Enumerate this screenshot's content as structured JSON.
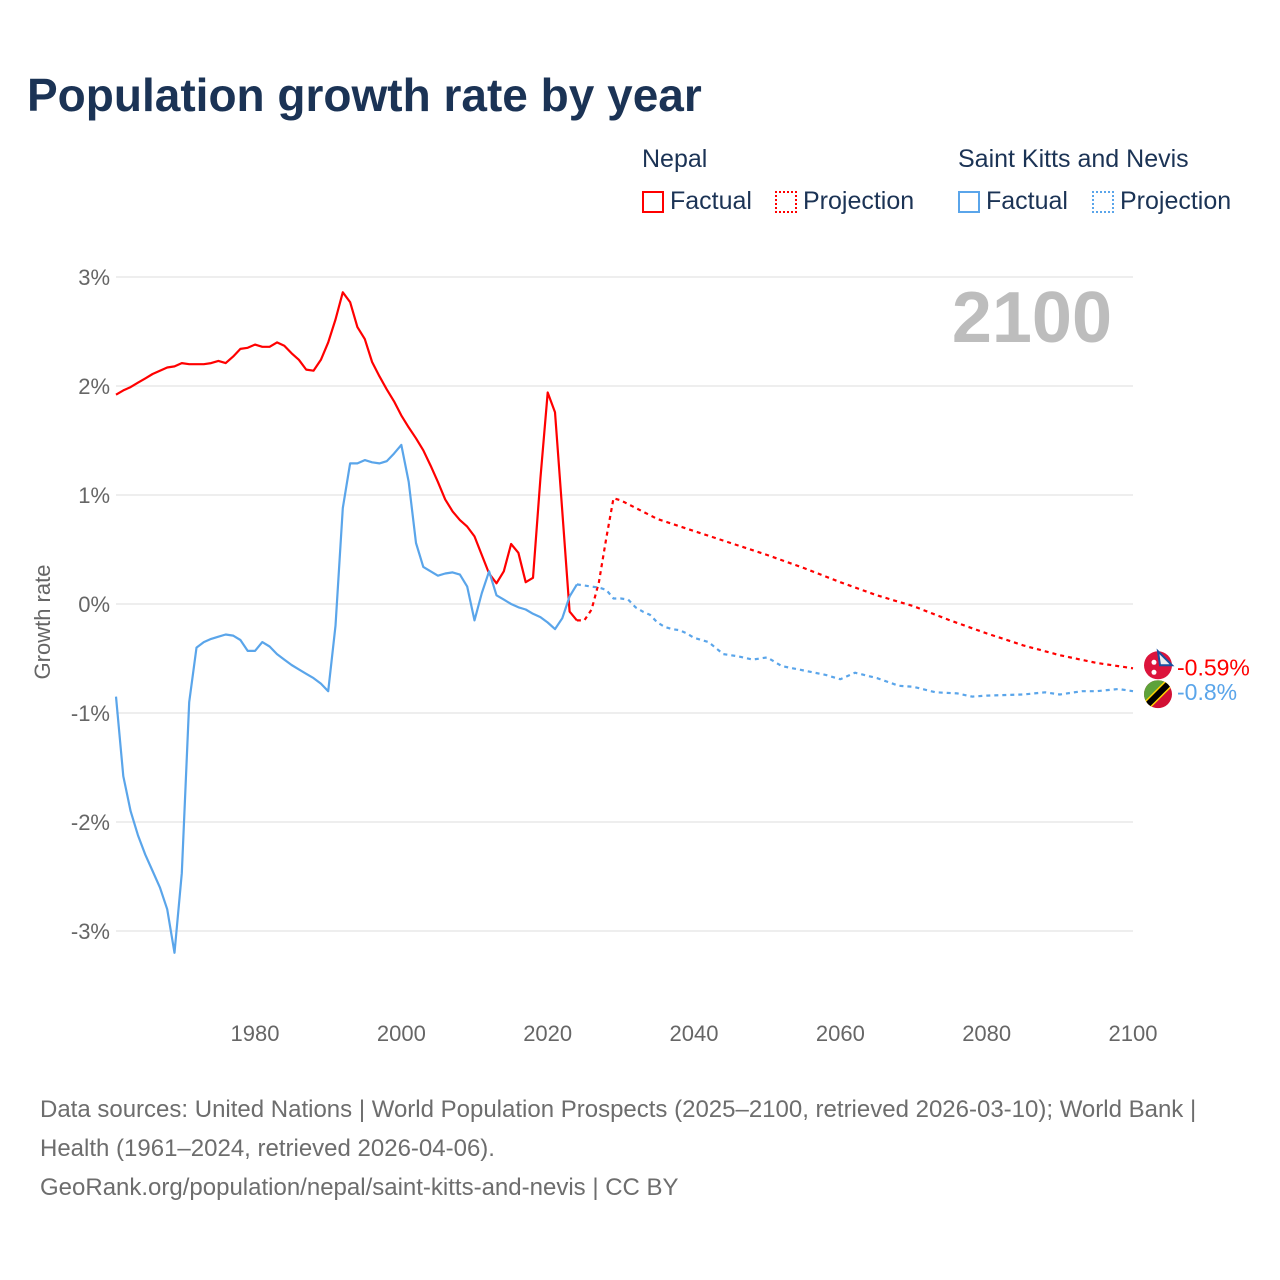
{
  "title": "Population growth rate by year",
  "legend": {
    "groups": [
      {
        "name": "Nepal",
        "items": [
          "Factual",
          "Projection"
        ],
        "color": "#ff0000"
      },
      {
        "name": "Saint Kitts and Nevis",
        "items": [
          "Factual",
          "Projection"
        ],
        "color": "#5aa5ea"
      }
    ]
  },
  "year_label": "2100",
  "footer": {
    "sources": "Data sources: United Nations | World Population Prospects (2025–2100, retrieved 2026-03-10); World Bank | Health (1961–2024, retrieved 2026-04-06).",
    "link": "GeoRank.org/population/nepal/saint-kitts-and-nevis | CC BY"
  },
  "chart_data": {
    "type": "line",
    "title": "Population growth rate by year",
    "xlabel": "",
    "ylabel": "Growth rate",
    "xlim": [
      1961,
      2100
    ],
    "ylim": [
      -3.5,
      3.3
    ],
    "xticks": [
      1980,
      2000,
      2020,
      2040,
      2060,
      2080,
      2100
    ],
    "xtick_labels": [
      "1980",
      "2000",
      "2020",
      "2040",
      "2060",
      "2080",
      "2100"
    ],
    "yticks": [
      3,
      2,
      1,
      0,
      -1,
      -2,
      -3
    ],
    "ytick_labels": [
      "3%",
      "2%",
      "1%",
      "0%",
      "-1%",
      "-2%",
      "-3%"
    ],
    "grid": true,
    "end_labels": [
      "-0.59%",
      "-0.8%"
    ],
    "series": [
      {
        "name": "Nepal Factual",
        "color": "#ff0000",
        "dashed": false,
        "x": [
          1961,
          1962,
          1963,
          1964,
          1965,
          1966,
          1967,
          1968,
          1969,
          1970,
          1971,
          1972,
          1973,
          1974,
          1975,
          1976,
          1977,
          1978,
          1979,
          1980,
          1981,
          1982,
          1983,
          1984,
          1985,
          1986,
          1987,
          1988,
          1989,
          1990,
          1991,
          1992,
          1993,
          1994,
          1995,
          1996,
          1997,
          1998,
          1999,
          2000,
          2001,
          2002,
          2003,
          2004,
          2005,
          2006,
          2007,
          2008,
          2009,
          2010,
          2011,
          2012,
          2013,
          2014,
          2015,
          2016,
          2017,
          2018,
          2019,
          2020,
          2021,
          2022,
          2023,
          2024
        ],
        "y": [
          1.92,
          1.96,
          1.99,
          2.03,
          2.07,
          2.11,
          2.14,
          2.17,
          2.18,
          2.21,
          2.2,
          2.2,
          2.2,
          2.21,
          2.23,
          2.21,
          2.27,
          2.34,
          2.35,
          2.38,
          2.36,
          2.36,
          2.4,
          2.37,
          2.3,
          2.24,
          2.15,
          2.14,
          2.24,
          2.4,
          2.61,
          2.86,
          2.77,
          2.54,
          2.43,
          2.22,
          2.09,
          1.97,
          1.86,
          1.73,
          1.62,
          1.52,
          1.41,
          1.27,
          1.12,
          0.96,
          0.85,
          0.77,
          0.71,
          0.62,
          0.45,
          0.28,
          0.19,
          0.3,
          0.55,
          0.47,
          0.2,
          0.24,
          1.15,
          1.94,
          1.76,
          0.85,
          -0.07,
          -0.15
        ]
      },
      {
        "name": "Nepal Projection",
        "color": "#ff0000",
        "dashed": true,
        "x": [
          2024,
          2025,
          2026,
          2027,
          2028,
          2029,
          2030,
          2035,
          2040,
          2045,
          2050,
          2055,
          2060,
          2065,
          2070,
          2075,
          2080,
          2085,
          2090,
          2095,
          2100
        ],
        "y": [
          -0.15,
          -0.15,
          -0.05,
          0.2,
          0.6,
          0.97,
          0.95,
          0.78,
          0.67,
          0.56,
          0.45,
          0.33,
          0.2,
          0.08,
          -0.02,
          -0.15,
          -0.27,
          -0.38,
          -0.47,
          -0.54,
          -0.59
        ]
      },
      {
        "name": "Saint Kitts and Nevis Factual",
        "color": "#5aa5ea",
        "dashed": false,
        "x": [
          1961,
          1962,
          1963,
          1964,
          1965,
          1966,
          1967,
          1968,
          1969,
          1970,
          1971,
          1972,
          1973,
          1974,
          1975,
          1976,
          1977,
          1978,
          1979,
          1980,
          1981,
          1982,
          1983,
          1984,
          1985,
          1986,
          1987,
          1988,
          1989,
          1990,
          1991,
          1992,
          1993,
          1994,
          1995,
          1996,
          1997,
          1998,
          1999,
          2000,
          2001,
          2002,
          2003,
          2004,
          2005,
          2006,
          2007,
          2008,
          2009,
          2010,
          2011,
          2012,
          2013,
          2014,
          2015,
          2016,
          2017,
          2018,
          2019,
          2020,
          2021,
          2022,
          2023,
          2024
        ],
        "y": [
          -0.85,
          -1.58,
          -1.9,
          -2.12,
          -2.3,
          -2.45,
          -2.6,
          -2.8,
          -3.2,
          -2.47,
          -0.9,
          -0.4,
          -0.35,
          -0.32,
          -0.3,
          -0.28,
          -0.29,
          -0.33,
          -0.43,
          -0.43,
          -0.35,
          -0.39,
          -0.46,
          -0.51,
          -0.56,
          -0.6,
          -0.64,
          -0.68,
          -0.73,
          -0.8,
          -0.2,
          0.88,
          1.29,
          1.29,
          1.32,
          1.3,
          1.29,
          1.31,
          1.38,
          1.46,
          1.12,
          0.56,
          0.34,
          0.3,
          0.26,
          0.28,
          0.29,
          0.27,
          0.16,
          -0.15,
          0.1,
          0.3,
          0.08,
          0.04,
          0.0,
          -0.03,
          -0.05,
          -0.09,
          -0.12,
          -0.17,
          -0.23,
          -0.13,
          0.07,
          0.18
        ]
      },
      {
        "name": "Saint Kitts and Nevis Projection",
        "color": "#5aa5ea",
        "dashed": true,
        "x": [
          2024,
          2025,
          2026,
          2027,
          2028,
          2029,
          2030,
          2031,
          2032,
          2033,
          2034,
          2035,
          2036,
          2037,
          2038,
          2039,
          2040,
          2042,
          2044,
          2046,
          2048,
          2050,
          2052,
          2055,
          2058,
          2060,
          2062,
          2065,
          2068,
          2070,
          2073,
          2076,
          2078,
          2080,
          2085,
          2088,
          2090,
          2093,
          2095,
          2098,
          2100
        ],
        "y": [
          0.18,
          0.17,
          0.16,
          0.15,
          0.13,
          0.05,
          0.05,
          0.04,
          -0.03,
          -0.07,
          -0.1,
          -0.17,
          -0.21,
          -0.23,
          -0.24,
          -0.27,
          -0.31,
          -0.35,
          -0.46,
          -0.48,
          -0.51,
          -0.49,
          -0.57,
          -0.61,
          -0.65,
          -0.69,
          -0.63,
          -0.68,
          -0.75,
          -0.76,
          -0.81,
          -0.82,
          -0.85,
          -0.84,
          -0.83,
          -0.81,
          -0.83,
          -0.8,
          -0.8,
          -0.78,
          -0.8
        ]
      }
    ]
  }
}
